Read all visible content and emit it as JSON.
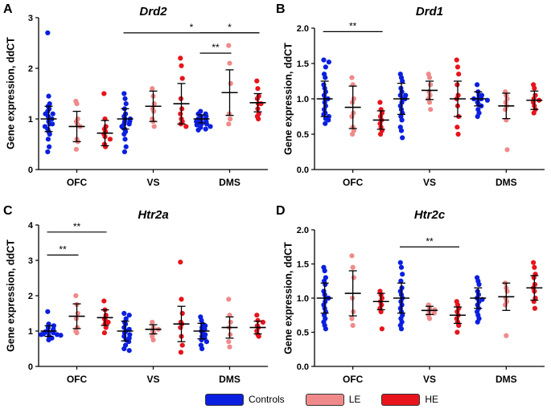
{
  "legend": {
    "items": [
      {
        "label": "Controls",
        "color": "#0a1fe0"
      },
      {
        "label": "LE",
        "color": "#f08a8a"
      },
      {
        "label": "HE",
        "color": "#e8141c"
      }
    ]
  },
  "chart_data": [
    {
      "panel": "A",
      "title": "Drd2",
      "type": "scatter",
      "ylabel": "Gene expression, ddCT",
      "ylim": [
        0,
        3
      ],
      "yticks": [
        "0",
        "1",
        "2",
        "3"
      ],
      "categories": [
        "OFC",
        "VS",
        "DMS"
      ],
      "series": [
        {
          "name": "Controls",
          "groups": [
            {
              "points": [
                2.7,
                1.45,
                1.3,
                1.25,
                1.2,
                1.15,
                1.1,
                1.1,
                1.05,
                1.0,
                1.0,
                0.95,
                0.9,
                0.9,
                0.85,
                0.8,
                0.75,
                0.7,
                0.6,
                0.45,
                0.35
              ],
              "mean": 1.0,
              "sd": 0.25
            },
            {
              "points": [
                1.5,
                1.4,
                1.3,
                1.2,
                1.1,
                1.05,
                1.0,
                1.0,
                0.95,
                0.95,
                0.9,
                0.9,
                0.85,
                0.8,
                0.75,
                0.7,
                0.6,
                0.45,
                0.35
              ],
              "mean": 1.0,
              "sd": 0.2
            },
            {
              "points": [
                1.15,
                1.1,
                1.1,
                1.05,
                1.05,
                1.0,
                1.0,
                1.0,
                0.95,
                0.95,
                0.95,
                0.9,
                0.9,
                0.88,
                0.85,
                0.83,
                0.8,
                0.78
              ],
              "mean": 1.0,
              "sd": 0.08
            }
          ]
        },
        {
          "name": "LE",
          "groups": [
            {
              "points": [
                1.35,
                1.3,
                1.0,
                0.95,
                0.9,
                0.85,
                0.6,
                0.55,
                0.4
              ],
              "mean": 0.85,
              "sd": 0.3
            },
            {
              "points": [
                1.6,
                1.45,
                1.3,
                1.2,
                1.15,
                1.0,
                0.95,
                0.85
              ],
              "mean": 1.25,
              "sd": 0.3
            },
            {
              "points": [
                2.45,
                2.1,
                1.7,
                1.1,
                1.0,
                0.9
              ],
              "mean": 1.52,
              "sd": 0.45
            }
          ]
        },
        {
          "name": "HE",
          "groups": [
            {
              "points": [
                1.5,
                1.0,
                0.85,
                0.8,
                0.75,
                0.7,
                0.65,
                0.6,
                0.5,
                0.45
              ],
              "mean": 0.72,
              "sd": 0.25
            },
            {
              "points": [
                2.2,
                2.05,
                1.8,
                1.4,
                1.2,
                1.1,
                1.0,
                0.95,
                0.9,
                0.85
              ],
              "mean": 1.3,
              "sd": 0.4
            },
            {
              "points": [
                1.75,
                1.6,
                1.45,
                1.4,
                1.3,
                1.3,
                1.2,
                1.1,
                1.05,
                1.0
              ],
              "mean": 1.32,
              "sd": 0.18
            }
          ]
        }
      ],
      "significance": [
        {
          "from": 1,
          "to": 2,
          "groupFrom": 0,
          "groupTo": 2,
          "y": 2.7,
          "label": "*"
        },
        {
          "from": 2,
          "to": 2,
          "groupFrom": 0,
          "groupTo": 1,
          "y": 2.3,
          "label": "**"
        },
        {
          "from": 2,
          "to": 2,
          "groupFrom": 0,
          "groupTo": 2,
          "y": 2.7,
          "label": "*"
        }
      ]
    },
    {
      "panel": "B",
      "title": "Drd1",
      "type": "scatter",
      "ylabel": "Gene expression, ddCT",
      "ylim": [
        0,
        2
      ],
      "yticks": [
        "0.0",
        "0.5",
        "1.0",
        "1.5",
        "2.0"
      ],
      "categories": [
        "OFC",
        "VS",
        "DMS"
      ],
      "series": [
        {
          "name": "Controls",
          "groups": [
            {
              "points": [
                1.55,
                1.52,
                1.45,
                1.35,
                1.3,
                1.2,
                1.15,
                1.1,
                1.05,
                1.0,
                1.0,
                0.95,
                0.9,
                0.85,
                0.8,
                0.78,
                0.75,
                0.72,
                0.7,
                0.65
              ],
              "mean": 1.0,
              "sd": 0.25
            },
            {
              "points": [
                1.35,
                1.3,
                1.25,
                1.15,
                1.1,
                1.05,
                1.05,
                1.0,
                1.0,
                0.95,
                0.9,
                0.85,
                0.8,
                0.75,
                0.7,
                0.6,
                0.55,
                0.45
              ],
              "mean": 1.0,
              "sd": 0.22
            },
            {
              "points": [
                1.2,
                1.1,
                1.05,
                1.05,
                1.0,
                1.0,
                1.0,
                0.98,
                0.95,
                0.92,
                0.9,
                0.85,
                0.8,
                0.75
              ],
              "mean": 1.0,
              "sd": 0.1
            }
          ]
        },
        {
          "name": "LE",
          "groups": [
            {
              "points": [
                1.3,
                1.2,
                1.0,
                0.95,
                0.8,
                0.75,
                0.6,
                0.55,
                0.5
              ],
              "mean": 0.88,
              "sd": 0.3
            },
            {
              "points": [
                1.35,
                1.3,
                1.2,
                1.1,
                1.05,
                1.0,
                0.95,
                0.85
              ],
              "mean": 1.12,
              "sd": 0.13
            },
            {
              "points": [
                1.1,
                1.05,
                1.0,
                0.95,
                0.9,
                0.85,
                0.7,
                0.28
              ],
              "mean": 0.9,
              "sd": 0.18
            }
          ]
        },
        {
          "name": "HE",
          "groups": [
            {
              "points": [
                0.95,
                0.85,
                0.8,
                0.75,
                0.7,
                0.65,
                0.6,
                0.55,
                0.5
              ],
              "mean": 0.7,
              "sd": 0.13
            },
            {
              "points": [
                1.55,
                1.45,
                1.35,
                1.2,
                1.05,
                1.0,
                0.9,
                0.75,
                0.6,
                0.5
              ],
              "mean": 1.0,
              "sd": 0.25
            },
            {
              "points": [
                1.2,
                1.15,
                1.05,
                1.0,
                0.98,
                0.95,
                0.9,
                0.85,
                0.8
              ],
              "mean": 0.98,
              "sd": 0.13
            }
          ]
        }
      ],
      "significance": [
        {
          "from": 0,
          "to": 0,
          "groupFrom": 0,
          "groupTo": 2,
          "y": 1.95,
          "label": "**"
        }
      ]
    },
    {
      "panel": "C",
      "title": "Htr2a",
      "type": "scatter",
      "ylabel": "Gene expression, ddCT",
      "ylim": [
        0,
        4
      ],
      "yticks": [
        "0",
        "1",
        "2",
        "3",
        "4"
      ],
      "categories": [
        "OFC",
        "VS",
        "DMS"
      ],
      "series": [
        {
          "name": "Controls",
          "groups": [
            {
              "points": [
                1.55,
                1.2,
                1.15,
                1.1,
                1.05,
                1.0,
                1.0,
                0.98,
                0.95,
                0.95,
                0.92,
                0.9,
                0.9,
                0.88,
                0.85,
                0.8,
                0.75
              ],
              "mean": 1.0,
              "sd": 0.15
            },
            {
              "points": [
                1.5,
                1.45,
                1.35,
                1.25,
                1.2,
                1.1,
                1.05,
                1.0,
                0.95,
                0.9,
                0.85,
                0.8,
                0.75,
                0.7,
                0.6,
                0.5,
                0.45
              ],
              "mean": 1.0,
              "sd": 0.28
            },
            {
              "points": [
                1.4,
                1.3,
                1.2,
                1.15,
                1.1,
                1.05,
                1.0,
                0.95,
                0.9,
                0.85,
                0.8,
                0.75,
                0.7,
                0.6,
                0.5
              ],
              "mean": 1.0,
              "sd": 0.22
            }
          ]
        },
        {
          "name": "LE",
          "groups": [
            {
              "points": [
                2.0,
                1.75,
                1.5,
                1.35,
                1.1,
                1.0,
                0.95
              ],
              "mean": 1.42,
              "sd": 0.35
            },
            {
              "points": [
                1.25,
                1.1,
                1.05,
                1.0,
                0.95,
                0.85,
                0.75
              ],
              "mean": 1.05,
              "sd": 0.13
            },
            {
              "points": [
                1.9,
                1.45,
                1.25,
                1.1,
                0.9,
                0.7,
                0.55
              ],
              "mean": 1.1,
              "sd": 0.3
            }
          ]
        },
        {
          "name": "HE",
          "groups": [
            {
              "points": [
                1.85,
                1.6,
                1.45,
                1.35,
                1.3,
                1.25,
                1.2,
                1.1,
                0.95
              ],
              "mean": 1.38,
              "sd": 0.22
            },
            {
              "points": [
                2.95,
                1.9,
                1.5,
                1.25,
                1.2,
                1.1,
                0.85,
                0.6,
                0.4
              ],
              "mean": 1.2,
              "sd": 0.5
            },
            {
              "points": [
                1.45,
                1.3,
                1.25,
                1.15,
                1.1,
                1.0,
                0.9,
                0.85
              ],
              "mean": 1.1,
              "sd": 0.18
            }
          ]
        }
      ],
      "significance": [
        {
          "from": 0,
          "to": 0,
          "groupFrom": 0,
          "groupTo": 2,
          "y": 3.8,
          "label": "**"
        },
        {
          "from": 0,
          "to": 0,
          "groupFrom": 0,
          "groupTo": 1,
          "y": 3.15,
          "label": "**"
        }
      ]
    },
    {
      "panel": "D",
      "title": "Htr2c",
      "type": "scatter",
      "ylabel": "Gene expression, ddCT",
      "ylim": [
        0,
        2
      ],
      "yticks": [
        "0.0",
        "0.5",
        "1.0",
        "1.5",
        "2.0"
      ],
      "categories": [
        "OFC",
        "VS",
        "DMS"
      ],
      "series": [
        {
          "name": "Controls",
          "groups": [
            {
              "points": [
                1.45,
                1.4,
                1.3,
                1.25,
                1.2,
                1.1,
                1.05,
                1.0,
                1.0,
                0.95,
                0.9,
                0.85,
                0.8,
                0.75,
                0.7,
                0.65,
                0.6,
                0.55
              ],
              "mean": 1.0,
              "sd": 0.22
            },
            {
              "points": [
                1.52,
                1.45,
                1.35,
                1.25,
                1.15,
                1.1,
                1.05,
                1.0,
                0.95,
                0.9,
                0.85,
                0.8,
                0.75,
                0.7,
                0.65,
                0.6,
                0.55
              ],
              "mean": 1.0,
              "sd": 0.22
            },
            {
              "points": [
                1.3,
                1.25,
                1.2,
                1.1,
                1.05,
                1.0,
                0.98,
                0.95,
                0.9,
                0.85,
                0.8,
                0.75,
                0.7,
                0.65
              ],
              "mean": 1.0,
              "sd": 0.15
            }
          ]
        },
        {
          "name": "LE",
          "groups": [
            {
              "points": [
                1.62,
                1.45,
                1.3,
                1.0,
                0.8,
                0.7,
                0.6
              ],
              "mean": 1.07,
              "sd": 0.33
            },
            {
              "points": [
                0.9,
                0.85,
                0.83,
                0.8,
                0.78,
                0.75,
                0.7
              ],
              "mean": 0.82,
              "sd": 0.06
            },
            {
              "points": [
                1.22,
                1.15,
                1.1,
                1.0,
                0.95,
                0.9,
                0.45
              ],
              "mean": 1.02,
              "sd": 0.2
            }
          ]
        },
        {
          "name": "HE",
          "groups": [
            {
              "points": [
                1.1,
                1.05,
                1.0,
                0.95,
                0.9,
                0.85,
                0.8,
                0.55
              ],
              "mean": 0.95,
              "sd": 0.12
            },
            {
              "points": [
                0.95,
                0.9,
                0.85,
                0.8,
                0.75,
                0.7,
                0.65,
                0.6,
                0.5
              ],
              "mean": 0.75,
              "sd": 0.12
            },
            {
              "points": [
                1.52,
                1.45,
                1.35,
                1.3,
                1.2,
                1.15,
                1.1,
                1.0,
                0.95,
                0.85
              ],
              "mean": 1.15,
              "sd": 0.18
            }
          ]
        }
      ],
      "significance": [
        {
          "from": 1,
          "to": 1,
          "groupFrom": 0,
          "groupTo": 2,
          "y": 1.75,
          "label": "**"
        }
      ]
    }
  ]
}
